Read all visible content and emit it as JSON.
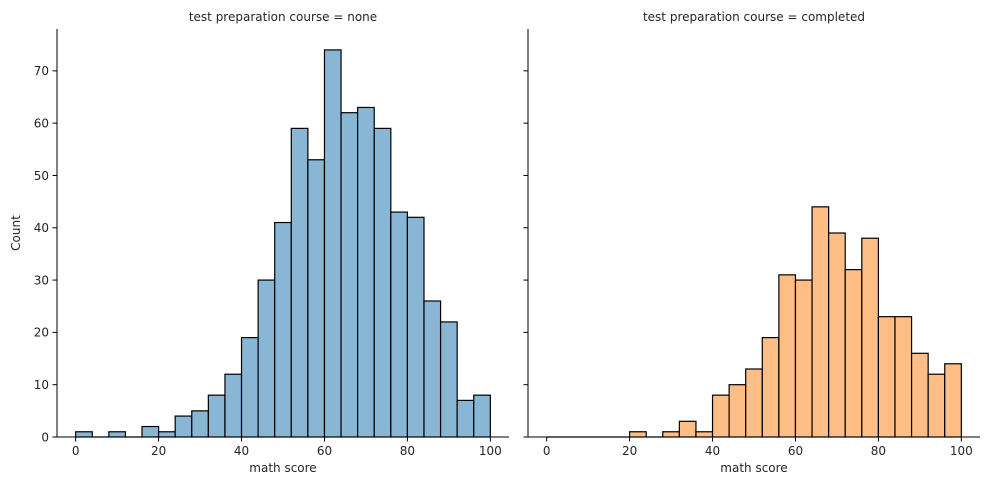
{
  "chart_data": {
    "type": "bar",
    "ylabel": "Count",
    "xlabel": "math score",
    "xlim": [
      -4.5,
      104.5
    ],
    "ylim": [
      0,
      78
    ],
    "xticks": [
      0,
      20,
      40,
      60,
      80,
      100
    ],
    "yticks": [
      0,
      10,
      20,
      30,
      40,
      50,
      60,
      70
    ],
    "bin_width": 4,
    "bin_edges": [
      0,
      4,
      8,
      12,
      16,
      20,
      24,
      28,
      32,
      36,
      40,
      44,
      48,
      52,
      56,
      60,
      64,
      68,
      72,
      76,
      80,
      84,
      88,
      92,
      96,
      100
    ],
    "panels": [
      {
        "title": "test preparation course = none",
        "color": "#8ab6d6",
        "values": [
          1,
          0,
          1,
          0,
          2,
          1,
          4,
          5,
          8,
          12,
          19,
          30,
          41,
          59,
          53,
          74,
          62,
          63,
          59,
          43,
          42,
          26,
          22,
          7,
          8
        ]
      },
      {
        "title": "test preparation course = completed",
        "color": "#ffbe86",
        "values": [
          0,
          0,
          0,
          0,
          0,
          1,
          0,
          1,
          3,
          1,
          8,
          10,
          13,
          19,
          31,
          30,
          44,
          39,
          32,
          38,
          23,
          23,
          16,
          12,
          14
        ]
      }
    ]
  }
}
